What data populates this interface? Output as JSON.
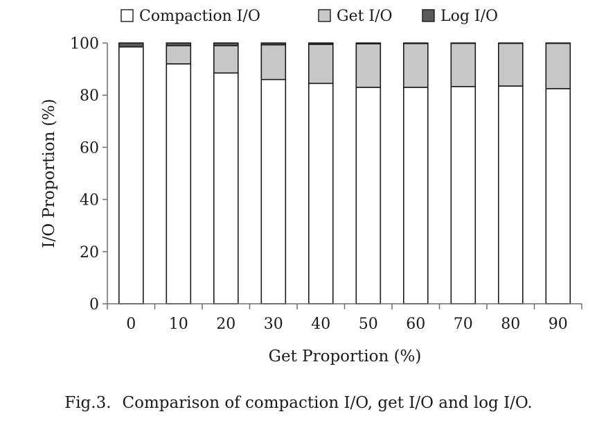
{
  "chart_data": {
    "type": "bar",
    "stacked": true,
    "categories": [
      "0",
      "10",
      "20",
      "30",
      "40",
      "50",
      "60",
      "70",
      "80",
      "90"
    ],
    "series": [
      {
        "name": "Compaction I/O",
        "color": "#ffffff",
        "values": [
          98.5,
          92.0,
          88.5,
          86.0,
          84.5,
          83.0,
          83.0,
          83.3,
          83.5,
          82.5
        ]
      },
      {
        "name": "Get I/O",
        "color": "#c8c8c8",
        "values": [
          0.0,
          7.0,
          10.5,
          13.3,
          15.0,
          16.7,
          16.8,
          16.6,
          16.4,
          17.4
        ]
      },
      {
        "name": "Log I/O",
        "color": "#5a5a5a",
        "values": [
          1.5,
          1.0,
          1.0,
          0.7,
          0.5,
          0.3,
          0.2,
          0.1,
          0.1,
          0.1
        ]
      }
    ],
    "xlabel": "Get Proportion (%)",
    "ylabel": "I/O Proportion (%)",
    "ylim": [
      0,
      100
    ],
    "yticks": [
      0,
      20,
      40,
      60,
      80,
      100
    ],
    "grid": false,
    "legend_position": "top"
  },
  "caption": {
    "number": "Fig.3.",
    "text": "Comparison of compaction I/O, get I/O and log I/O."
  }
}
